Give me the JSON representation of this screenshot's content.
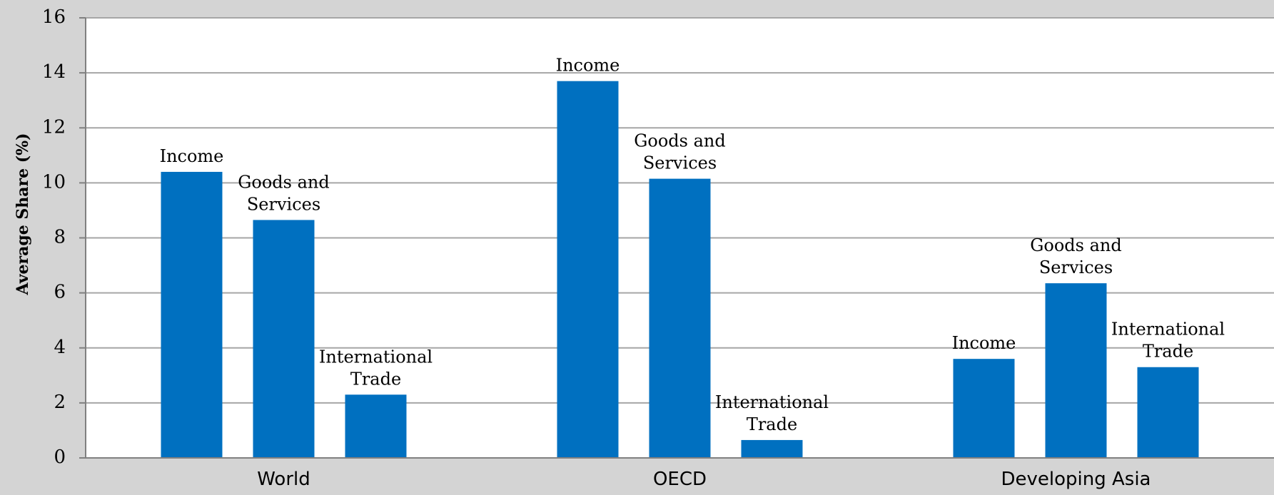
{
  "chart_data": {
    "type": "bar",
    "title": "",
    "xlabel": "",
    "ylabel": "Average Share (%)",
    "ylim": [
      0,
      16
    ],
    "yticks": [
      0,
      2,
      4,
      6,
      8,
      10,
      12,
      14,
      16
    ],
    "grid": true,
    "legend": "none",
    "bar_color": "#0070c0",
    "groups": [
      {
        "category": "World",
        "bars": [
          {
            "label": "Income",
            "value": 10.4
          },
          {
            "label": "Goods and Services",
            "value": 8.65
          },
          {
            "label": "International Trade",
            "value": 2.3
          }
        ]
      },
      {
        "category": "OECD",
        "bars": [
          {
            "label": "Income",
            "value": 13.7
          },
          {
            "label": "Goods and Services",
            "value": 10.15
          },
          {
            "label": "International Trade",
            "value": 0.65
          }
        ]
      },
      {
        "category": "Developing Asia",
        "bars": [
          {
            "label": "Income",
            "value": 3.6
          },
          {
            "label": "Goods and Services",
            "value": 6.35
          },
          {
            "label": "International Trade",
            "value": 3.3
          }
        ]
      }
    ]
  }
}
